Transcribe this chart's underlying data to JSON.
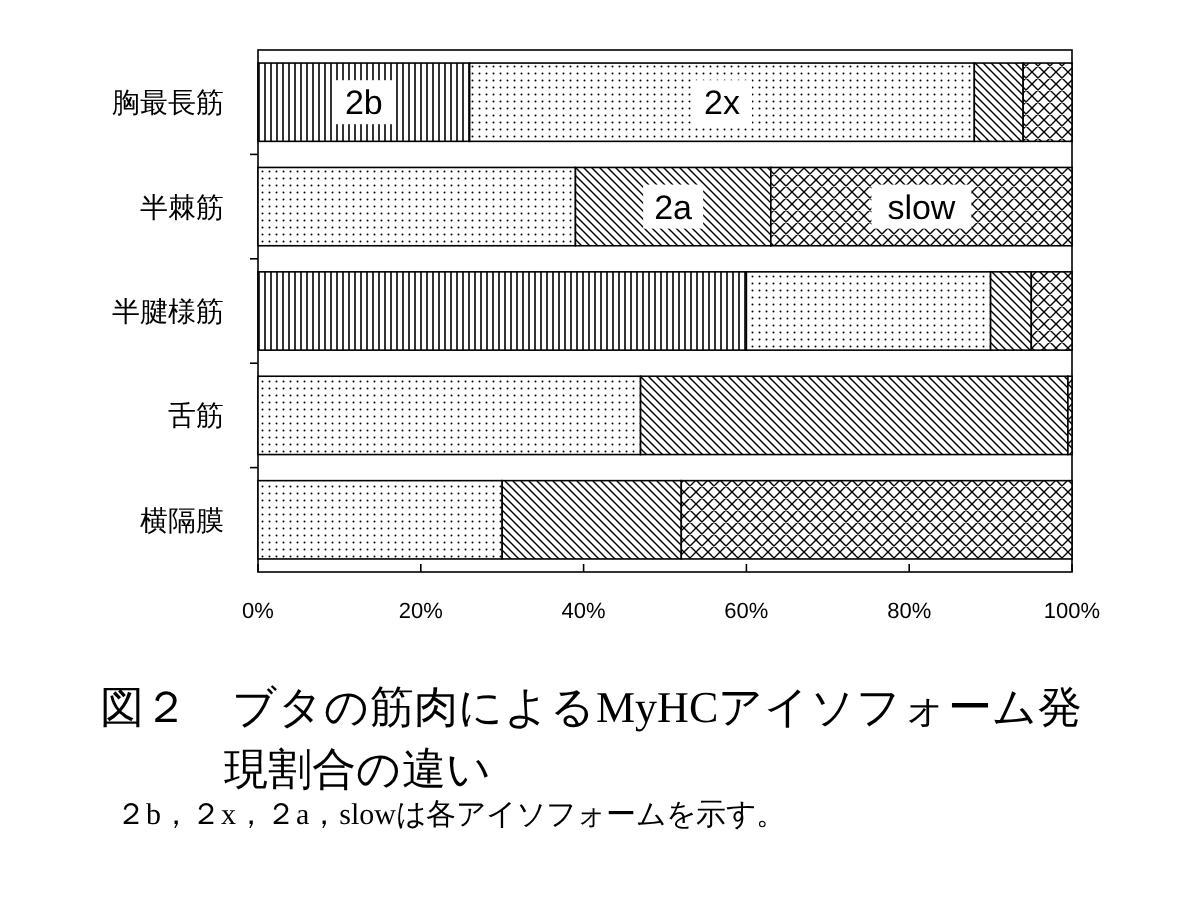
{
  "chart_data": {
    "type": "bar",
    "orientation": "horizontal",
    "stacked": true,
    "title": "図２　ブタの筋肉によるMyHCアイソフォーム発現割合の違い",
    "annotations": [
      "２b，２x，２a，slowは各アイソフォームを示す。"
    ],
    "categories": [
      "胸最長筋",
      "半棘筋",
      "半腱様筋",
      "舌筋",
      "横隔膜"
    ],
    "series": [
      {
        "name": "2b",
        "color": "#000000",
        "values": [
          26,
          0,
          60,
          0,
          0
        ]
      },
      {
        "name": "2x",
        "color": "#000000",
        "values": [
          62,
          39,
          30,
          47,
          30
        ]
      },
      {
        "name": "2a",
        "color": "#000000",
        "values": [
          6,
          24,
          5,
          52.5,
          22
        ]
      },
      {
        "name": "slow",
        "color": "#000000",
        "values": [
          6,
          37,
          5,
          0.5,
          48
        ]
      }
    ],
    "xlim": [
      0,
      100
    ],
    "xticks": [
      {
        "value": 0,
        "label": "0%"
      },
      {
        "value": 20,
        "label": "20%"
      },
      {
        "value": 40,
        "label": "40%"
      },
      {
        "value": 60,
        "label": "60%"
      },
      {
        "value": 80,
        "label": "80%"
      },
      {
        "value": 100,
        "label": "100%"
      }
    ]
  }
}
